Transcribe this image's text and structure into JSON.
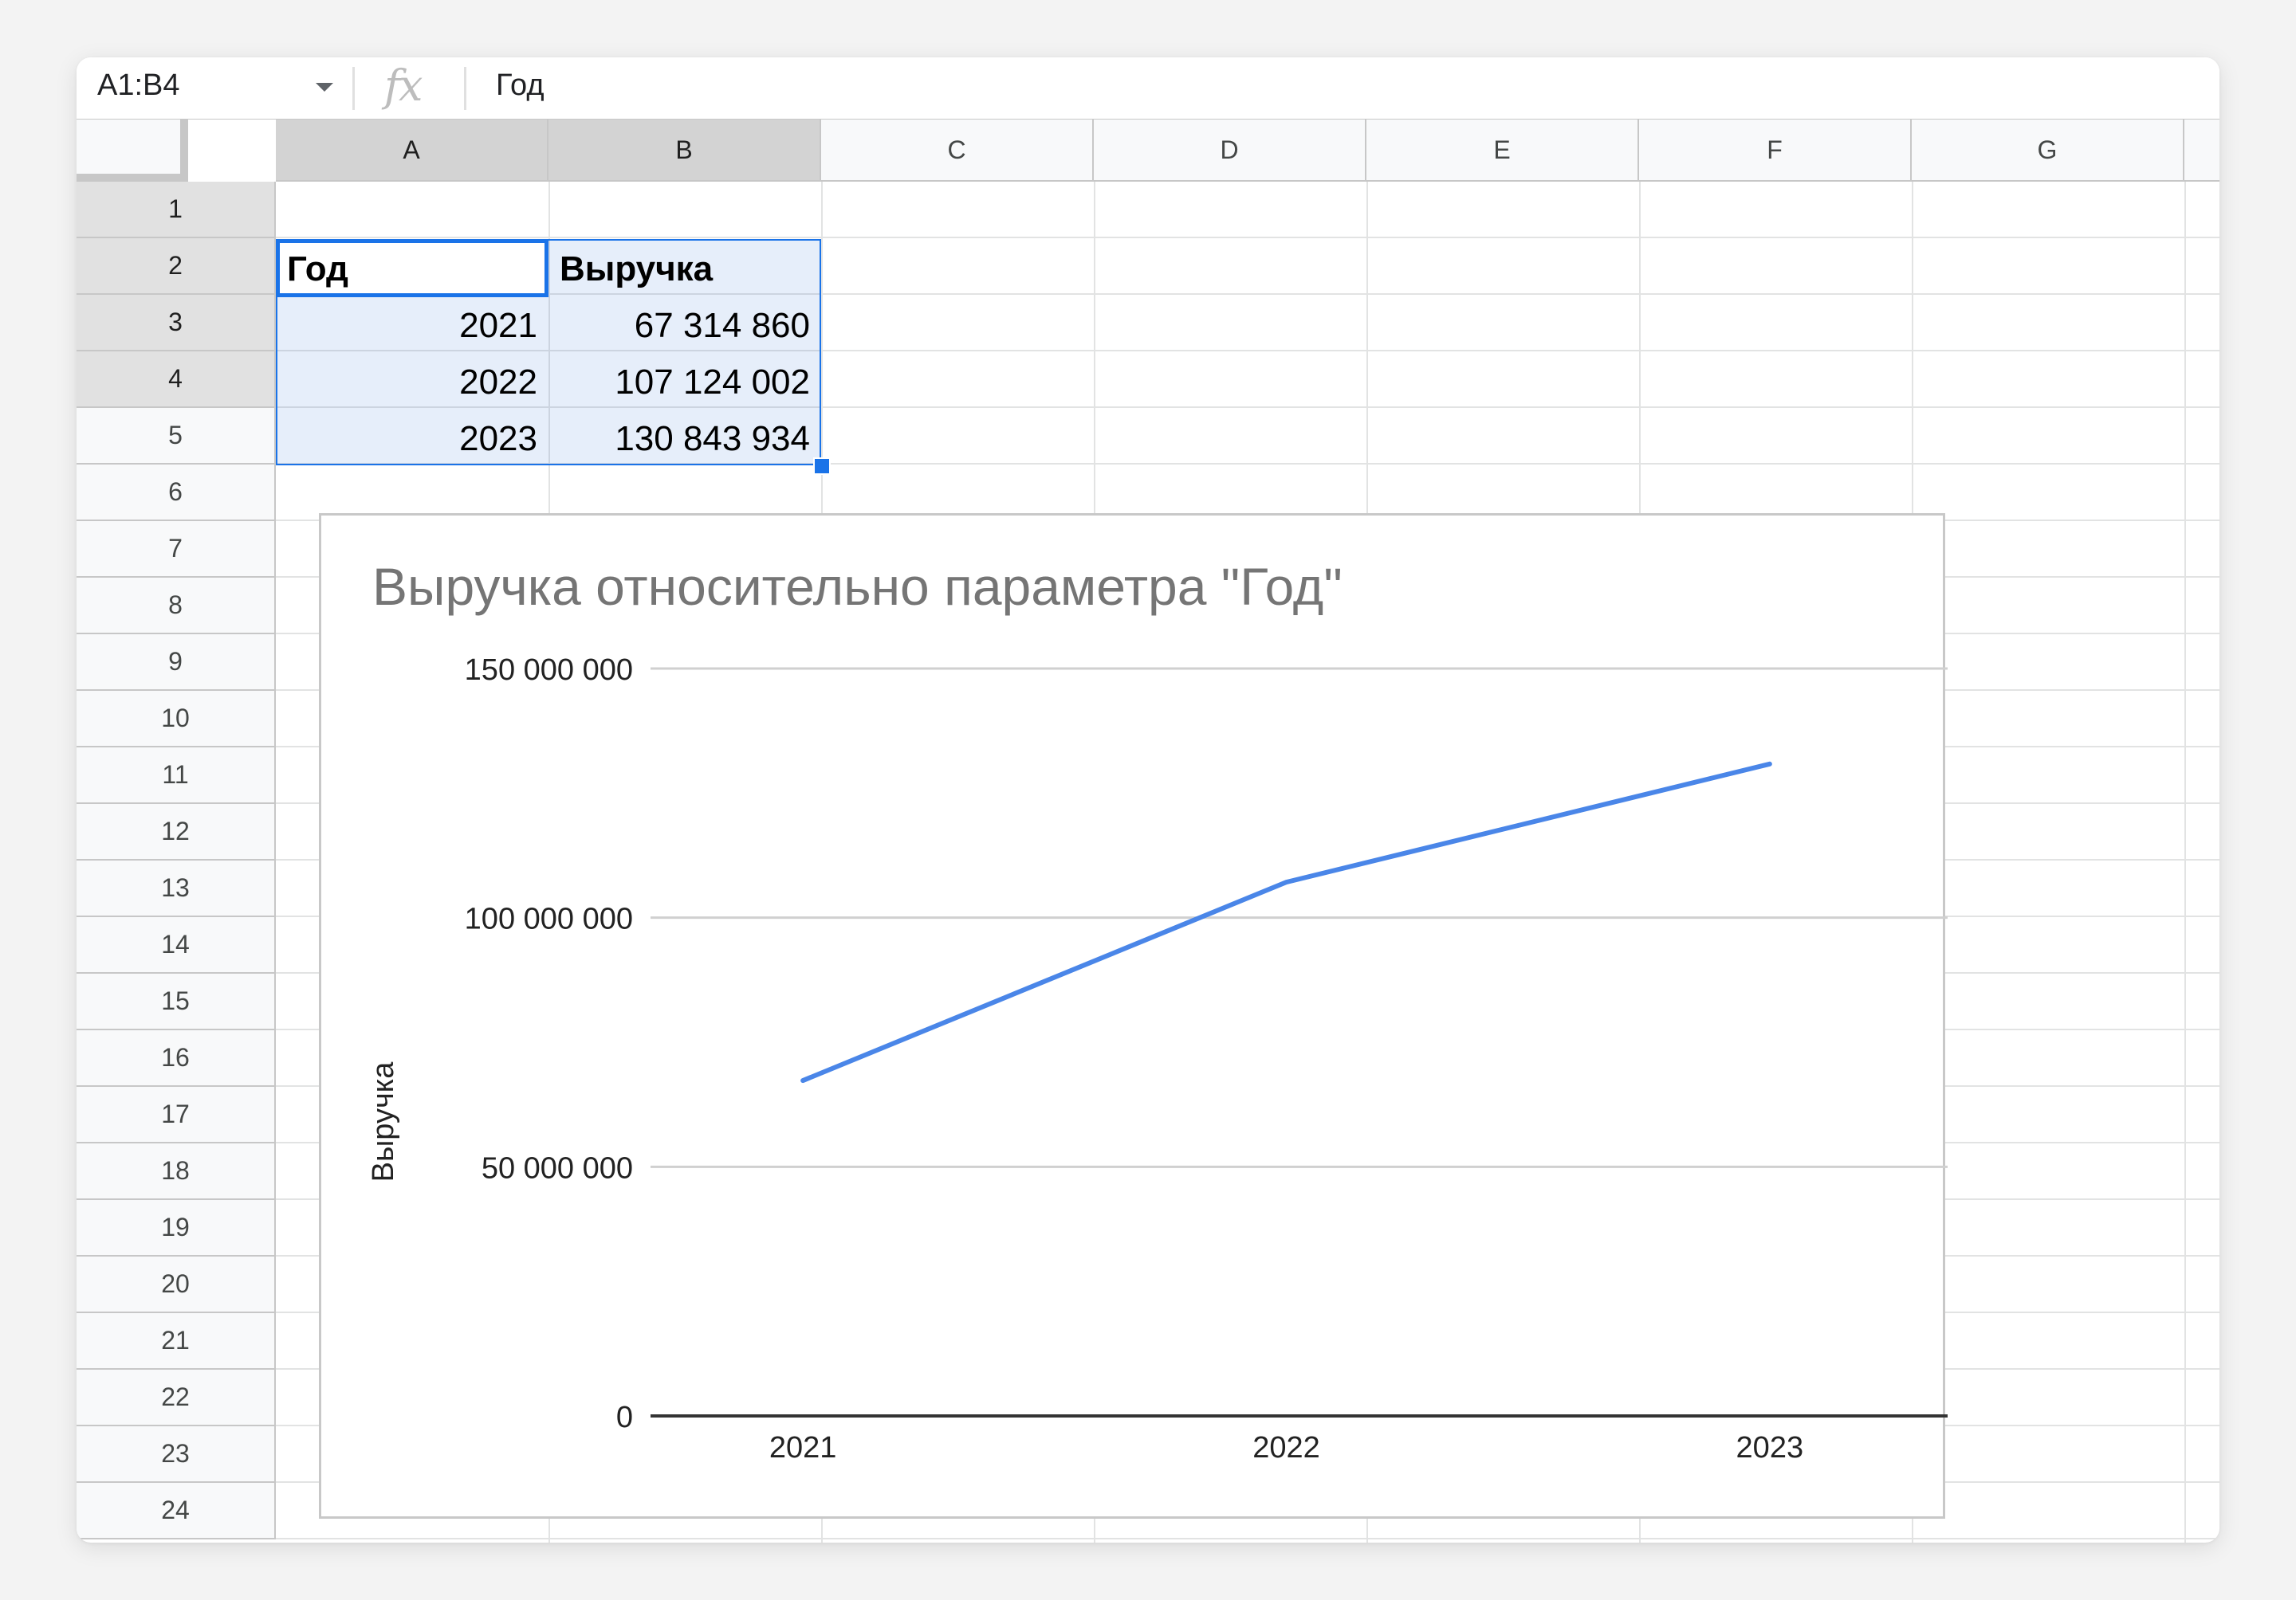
{
  "formula_bar": {
    "name_box": "A1:B4",
    "fx_label": "fx",
    "content": "Год"
  },
  "columns": [
    "A",
    "B",
    "C",
    "D",
    "E",
    "F",
    "G"
  ],
  "rows": [
    "1",
    "2",
    "3",
    "4",
    "5",
    "6",
    "7",
    "8",
    "9",
    "10",
    "11",
    "12",
    "13",
    "14",
    "15",
    "16",
    "17",
    "18",
    "19",
    "20",
    "21",
    "22",
    "23",
    "24"
  ],
  "cells": {
    "A1": "Год",
    "B1": "Выручка",
    "A2": "2021",
    "B2": "67 314 860",
    "A3": "2022",
    "B3": "107 124 002",
    "A4": "2023",
    "B4": "130 843 934"
  },
  "chart_data": {
    "type": "line",
    "title": "Выручка относительно параметра \"Год\"",
    "xlabel": "",
    "ylabel": "Выручка",
    "categories": [
      "2021",
      "2022",
      "2023"
    ],
    "series": [
      {
        "values": [
          67314860,
          107124002,
          130843934
        ]
      }
    ],
    "ylim": [
      0,
      150000000
    ],
    "yticks": [
      0,
      50000000,
      100000000,
      150000000
    ],
    "ytick_labels": [
      "0",
      "50 000 000",
      "100 000 000",
      "150 000 000"
    ],
    "grid": true,
    "legend": "none",
    "line_color": "#4a86e8"
  }
}
